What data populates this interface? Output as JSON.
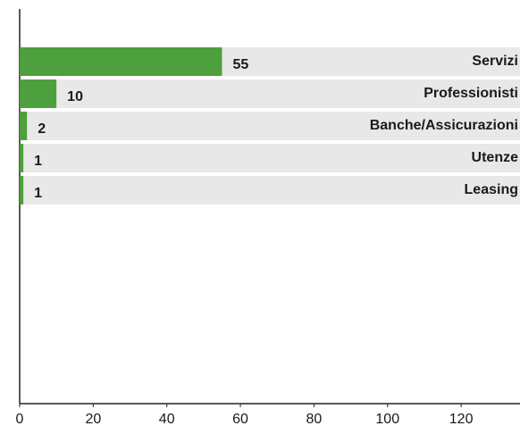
{
  "chart_data": {
    "type": "hbar",
    "categories": [
      "Servizi",
      "Professionisti",
      "Banche/Assicurazioni",
      "Utenze",
      "Leasing"
    ],
    "values": [
      55,
      10,
      2,
      1,
      1
    ],
    "color": "#4e9f3d",
    "xlim": [
      0,
      136
    ],
    "xticks": [
      0,
      20,
      40,
      60,
      80,
      100,
      120
    ]
  }
}
